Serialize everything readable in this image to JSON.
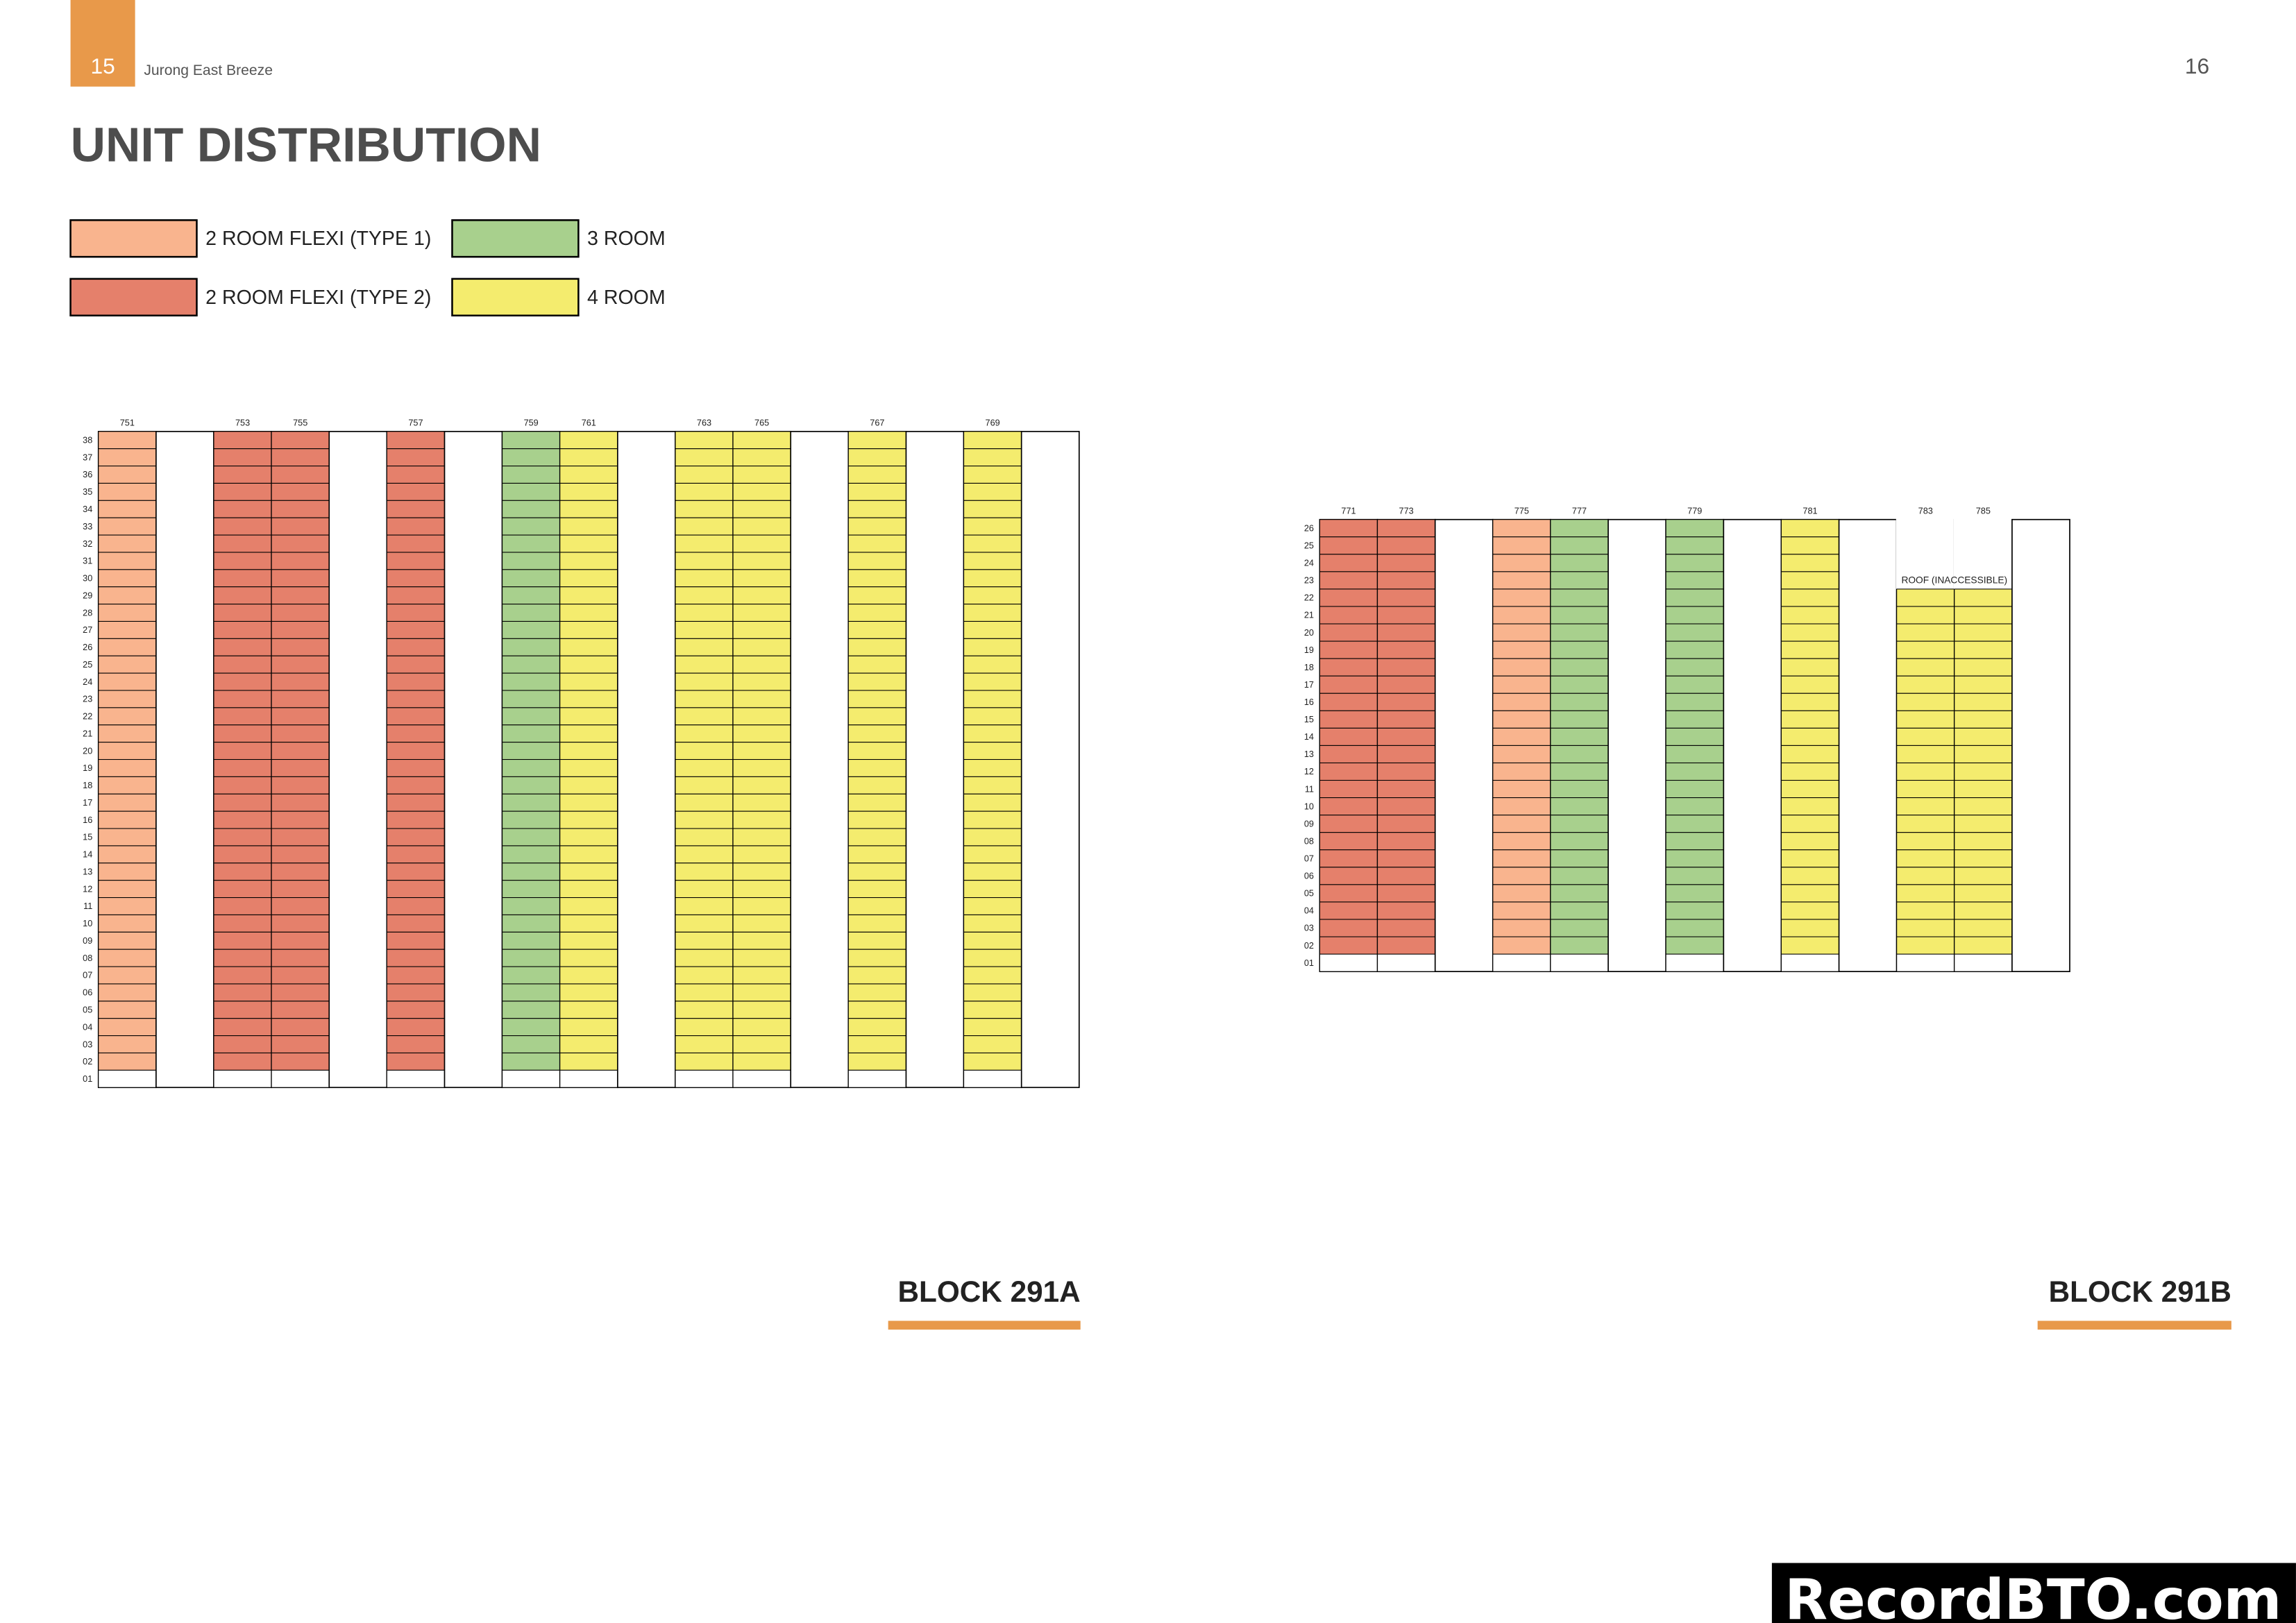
{
  "header": {
    "page_left": "15",
    "project": "Jurong East Breeze",
    "page_right": "16"
  },
  "title": "UNIT DISTRIBUTION",
  "legend": [
    {
      "label": "2 ROOM FLEXI (TYPE 1)",
      "color": "#f9b48e"
    },
    {
      "label": "3 ROOM",
      "color": "#a8d08d"
    },
    {
      "label": "2 ROOM FLEXI (TYPE 2)",
      "color": "#e5806b"
    },
    {
      "label": "4 ROOM",
      "color": "#f4ec6e"
    }
  ],
  "blocks": [
    {
      "name": "BLOCK 291A",
      "floors": [
        "38",
        "37",
        "36",
        "35",
        "34",
        "33",
        "32",
        "31",
        "30",
        "29",
        "28",
        "27",
        "26",
        "25",
        "24",
        "23",
        "22",
        "21",
        "20",
        "19",
        "18",
        "17",
        "16",
        "15",
        "14",
        "13",
        "12",
        "11",
        "10",
        "09",
        "08",
        "07",
        "06",
        "05",
        "04",
        "03",
        "02",
        "01"
      ],
      "columns": [
        {
          "unit": "751",
          "color": "#f9b48e"
        },
        null,
        {
          "unit": "753",
          "color": "#e5806b"
        },
        {
          "unit": "755",
          "color": "#e5806b"
        },
        null,
        {
          "unit": "757",
          "color": "#e5806b"
        },
        null,
        {
          "unit": "759",
          "color": "#a8d08d"
        },
        {
          "unit": "761",
          "color": "#f4ec6e"
        },
        null,
        {
          "unit": "763",
          "color": "#f4ec6e"
        },
        {
          "unit": "765",
          "color": "#f4ec6e"
        },
        null,
        {
          "unit": "767",
          "color": "#f4ec6e"
        },
        null,
        {
          "unit": "769",
          "color": "#f4ec6e"
        },
        null
      ]
    },
    {
      "name": "BLOCK 291B",
      "floors": [
        "26",
        "25",
        "24",
        "23",
        "22",
        "21",
        "20",
        "19",
        "18",
        "17",
        "16",
        "15",
        "14",
        "13",
        "12",
        "11",
        "10",
        "09",
        "08",
        "07",
        "06",
        "05",
        "04",
        "03",
        "02",
        "01"
      ],
      "roof_label": "ROOF (INACCESSIBLE)",
      "columns": [
        {
          "unit": "771",
          "color": "#e5806b"
        },
        {
          "unit": "773",
          "color": "#e5806b"
        },
        null,
        {
          "unit": "775",
          "color": "#f9b48e"
        },
        {
          "unit": "777",
          "color": "#a8d08d"
        },
        null,
        {
          "unit": "779",
          "color": "#a8d08d"
        },
        null,
        {
          "unit": "781",
          "color": "#f4ec6e"
        },
        null,
        {
          "unit": "783",
          "color": "#f4ec6e",
          "top": "22"
        },
        {
          "unit": "785",
          "color": "#f4ec6e",
          "top": "22"
        },
        null
      ]
    }
  ],
  "watermark": "RecordBTO.com"
}
